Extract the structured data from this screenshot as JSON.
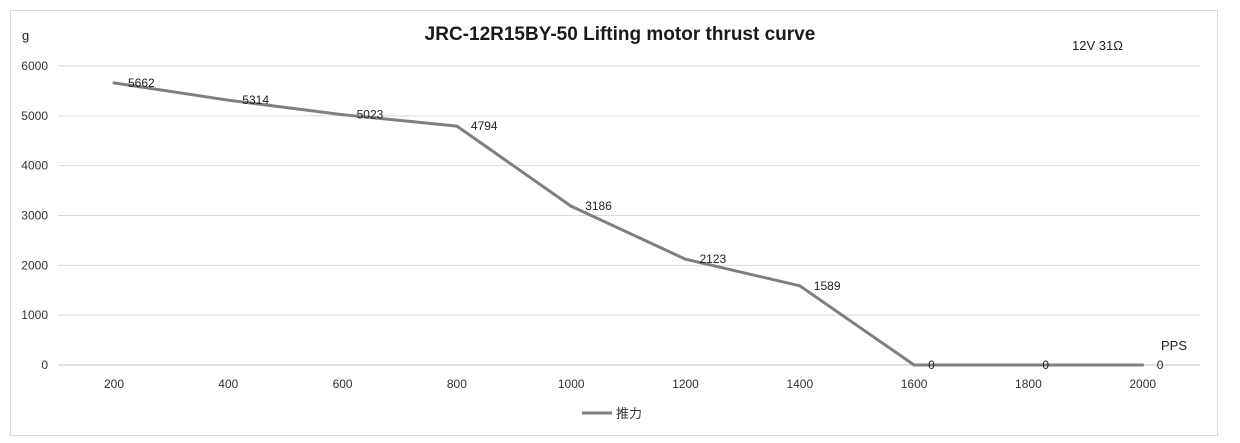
{
  "chart_data": {
    "type": "line",
    "title": "JRC-12R15BY-50 Lifting motor thrust curve",
    "annotation": "12V  31Ω",
    "ylabel": "g",
    "xlabel": "PPS",
    "ylim": [
      0,
      6000
    ],
    "yticks": [
      0,
      1000,
      2000,
      3000,
      4000,
      5000,
      6000
    ],
    "x": [
      200,
      400,
      600,
      800,
      1000,
      1200,
      1400,
      1600,
      1800,
      2000
    ],
    "grid": true,
    "legend_position": "bottom",
    "series": [
      {
        "name": "推力",
        "color": "#7f7f7f",
        "values": [
          5662,
          5314,
          5023,
          4794,
          3186,
          2123,
          1589,
          0,
          0,
          0
        ]
      }
    ]
  }
}
